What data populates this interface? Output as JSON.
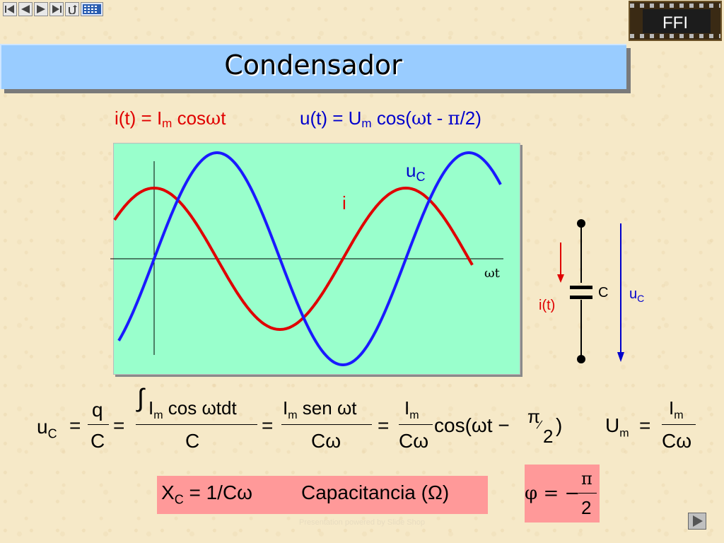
{
  "nav": {
    "buttons": [
      {
        "name": "first-slide-button",
        "icon": "first-icon"
      },
      {
        "name": "previous-slide-button",
        "icon": "previous-icon"
      },
      {
        "name": "next-slide-nav-button",
        "icon": "next-icon"
      },
      {
        "name": "last-slide-button",
        "icon": "last-icon"
      },
      {
        "name": "return-button",
        "icon": "return-icon"
      },
      {
        "name": "calculator-button",
        "icon": "calculator-icon"
      }
    ]
  },
  "logo": {
    "text": "FFI"
  },
  "title": "Condensador",
  "equations": {
    "current": {
      "prefix": "i(t) = I",
      "sub": "m",
      "suffix": " cos",
      "omega": "ω",
      "t": "t"
    },
    "voltage": {
      "prefix": "u(t) = U",
      "sub": "m",
      "mid": " cos(",
      "omega": "ω",
      "t": "t - ",
      "pi": "π",
      "end": "/2)"
    }
  },
  "chart_data": {
    "type": "line",
    "series": [
      {
        "name": "i",
        "color": "#e00000",
        "amplitude": 1,
        "phase_deg": 0
      },
      {
        "name": "uC",
        "color": "#1a1aff",
        "amplitude": 1.5,
        "phase_deg": -90
      }
    ],
    "labels": {
      "i": "i",
      "uC_main": "u",
      "uC_sub": "C",
      "xaxis": "ωt"
    }
  },
  "circuit": {
    "current_label": "i(t)",
    "cap_label": "C",
    "voltage_main": "u",
    "voltage_sub": "C"
  },
  "formula": {
    "uc": "u",
    "uc_sub": "C",
    "eq": "=",
    "q": "q",
    "C": "C",
    "integral": "∫",
    "Im": "I",
    "m": "m",
    "cos_wtdt": "cos ωtdt",
    "sen_wt": "sen ωt",
    "Cw": "Cω",
    "cos_open": "cos(ωt −",
    "pi": "π",
    "two": "2",
    "close": ")",
    "Um": "U"
  },
  "xc_box": {
    "text": "X",
    "sub": "C",
    "rest": " = 1/Cω",
    "cap": "Capacitancia (Ω)"
  },
  "phi_box": {
    "phi": "φ = −",
    "pi": "π",
    "two": "2"
  },
  "footer": "Presentation powered by Slide Shop"
}
